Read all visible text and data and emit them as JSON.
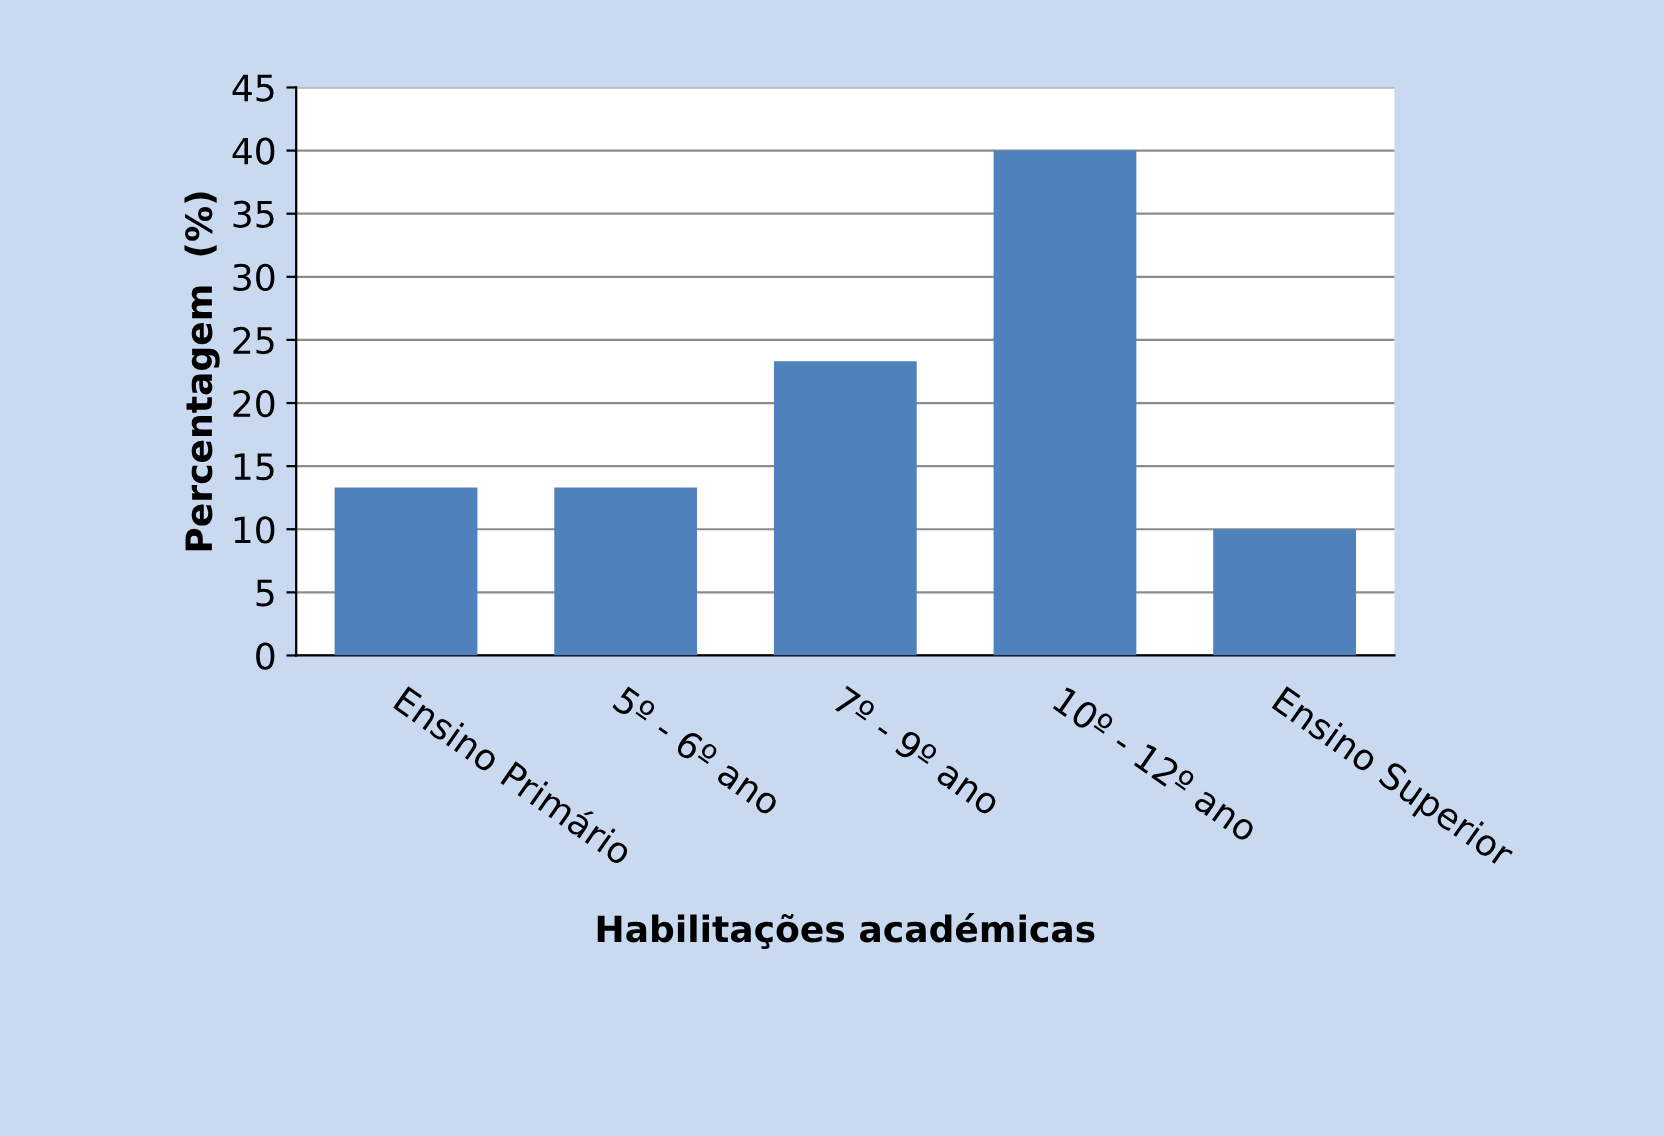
{
  "chart_data": {
    "type": "bar",
    "xlabel": "Habilitações académicas",
    "ylabel": "Percentagem  (%)",
    "categories": [
      "Ensino Primário",
      "5º - 6º ano",
      "7º - 9º ano",
      "10º - 12º ano",
      "Ensino Superior"
    ],
    "values": [
      13.3,
      13.3,
      23.3,
      40,
      10
    ],
    "color": "#4f81bd",
    "ylim": [
      0,
      45
    ],
    "yticks": [
      0,
      5,
      10,
      15,
      20,
      25,
      30,
      35,
      40,
      45
    ],
    "grid": "y"
  }
}
